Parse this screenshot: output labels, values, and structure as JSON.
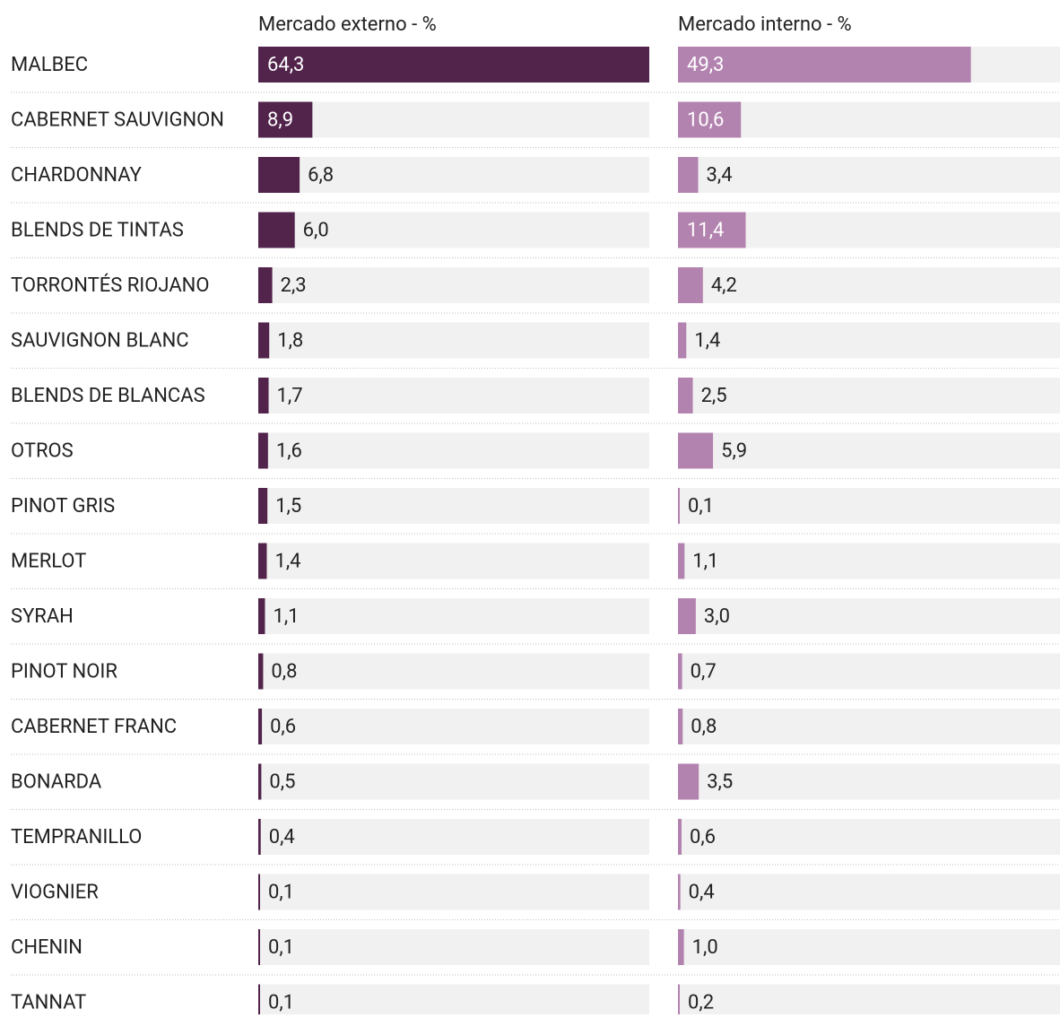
{
  "chart_data": {
    "type": "bar",
    "categories": [
      "MALBEC",
      "CABERNET SAUVIGNON",
      "CHARDONNAY",
      "BLENDS DE TINTAS",
      "TORRONTÉS RIOJANO",
      "SAUVIGNON BLANC",
      "BLENDS DE BLANCAS",
      "OTROS",
      "PINOT GRIS",
      "MERLOT",
      "SYRAH",
      "PINOT NOIR",
      "CABERNET FRANC",
      "BONARDA",
      "TEMPRANILLO",
      "VIOGNIER",
      "CHENIN",
      "TANNAT"
    ],
    "series": [
      {
        "name": "Mercado externo - %",
        "color": "#52244c",
        "values": [
          64.3,
          8.9,
          6.8,
          6.0,
          2.3,
          1.8,
          1.7,
          1.6,
          1.5,
          1.4,
          1.1,
          0.8,
          0.6,
          0.5,
          0.4,
          0.1,
          0.1,
          0.1
        ],
        "value_labels": [
          "64,3",
          "8,9",
          "6,8",
          "6,0",
          "2,3",
          "1,8",
          "1,7",
          "1,6",
          "1,5",
          "1,4",
          "1,1",
          "0,8",
          "0,6",
          "0,5",
          "0,4",
          "0,1",
          "0,1",
          "0,1"
        ]
      },
      {
        "name": "Mercado interno - %",
        "color": "#b383b0",
        "values": [
          49.3,
          10.6,
          3.4,
          11.4,
          4.2,
          1.4,
          2.5,
          5.9,
          0.1,
          1.1,
          3.0,
          0.7,
          0.8,
          3.5,
          0.6,
          0.4,
          1.0,
          0.2
        ],
        "value_labels": [
          "49,3",
          "10,6",
          "3,4",
          "11,4",
          "4,2",
          "1,4",
          "2,5",
          "5,9",
          "0,1",
          "1,1",
          "3,0",
          "0,7",
          "0,8",
          "3,5",
          "0,6",
          "0,4",
          "1,0",
          "0,2"
        ]
      }
    ],
    "xlim": [
      0,
      64.3
    ]
  }
}
